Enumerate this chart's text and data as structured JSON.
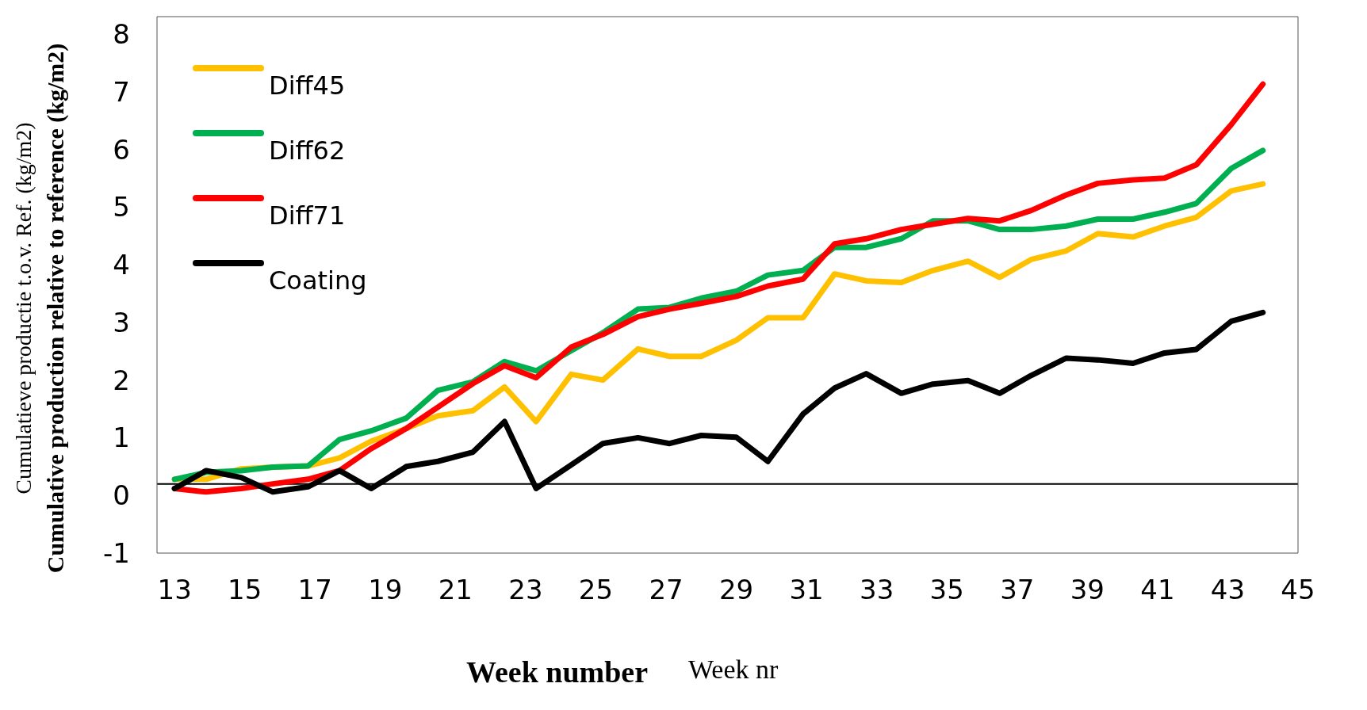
{
  "chart_data": {
    "type": "line",
    "ylabel": "Cumulative production relative to reference (kg/m2)",
    "xlabel": "Week number",
    "annotations": [
      "Cumulatieve productie t.o.v. Ref. (kg/m2)",
      "Week nr"
    ],
    "x": [
      13,
      13.9,
      14.9,
      15.8,
      16.8,
      17.7,
      18.6,
      19.6,
      20.5,
      21.5,
      22.4,
      23.3,
      24.3,
      25.2,
      26.2,
      27.1,
      28.0,
      29.0,
      29.9,
      30.9,
      31.8,
      32.7,
      33.7,
      34.6,
      35.6,
      36.5,
      37.4,
      38.4,
      39.3,
      40.3,
      41.2,
      42.1,
      43.1,
      44.0
    ],
    "series": [
      {
        "name": "Diff45",
        "color": "#ffc000",
        "values": [
          0.28,
          0.28,
          0.46,
          0.49,
          0.51,
          0.65,
          0.94,
          1.16,
          1.38,
          1.47,
          1.88,
          1.28,
          2.1,
          2.0,
          2.54,
          2.41,
          2.41,
          2.69,
          3.08,
          3.08,
          3.84,
          3.72,
          3.69,
          3.9,
          4.06,
          3.78,
          4.09,
          4.24,
          4.54,
          4.48,
          4.67,
          4.82,
          5.28,
          5.4
        ]
      },
      {
        "name": "Diff62",
        "color": "#00b050",
        "values": [
          0.28,
          0.4,
          0.43,
          0.49,
          0.51,
          0.97,
          1.12,
          1.34,
          1.82,
          1.97,
          2.32,
          2.16,
          2.51,
          2.82,
          3.23,
          3.26,
          3.42,
          3.54,
          3.82,
          3.9,
          4.3,
          4.3,
          4.45,
          4.76,
          4.76,
          4.61,
          4.61,
          4.67,
          4.79,
          4.79,
          4.91,
          5.06,
          5.67,
          5.98
        ]
      },
      {
        "name": "Diff71",
        "color": "#ff0000",
        "values": [
          0.12,
          0.06,
          0.12,
          0.2,
          0.28,
          0.43,
          0.81,
          1.16,
          1.53,
          1.94,
          2.25,
          2.04,
          2.57,
          2.79,
          3.1,
          3.23,
          3.33,
          3.45,
          3.63,
          3.75,
          4.36,
          4.45,
          4.61,
          4.7,
          4.8,
          4.76,
          4.94,
          5.21,
          5.41,
          5.47,
          5.5,
          5.73,
          6.43,
          7.13
        ]
      },
      {
        "name": "Coating",
        "color": "#000000",
        "values": [
          0.12,
          0.43,
          0.31,
          0.06,
          0.15,
          0.43,
          0.12,
          0.5,
          0.59,
          0.75,
          1.28,
          0.12,
          0.53,
          0.9,
          1.0,
          0.9,
          1.04,
          1.01,
          0.59,
          1.41,
          1.86,
          2.11,
          1.77,
          1.93,
          1.99,
          1.77,
          2.08,
          2.38,
          2.35,
          2.29,
          2.47,
          2.53,
          3.02,
          3.17
        ]
      }
    ],
    "xlim": [
      12.5,
      45
    ],
    "xticks": [
      13,
      15,
      17,
      19,
      21,
      23,
      25,
      27,
      29,
      31,
      33,
      35,
      37,
      39,
      41,
      43,
      45
    ],
    "ylim": [
      -1,
      8.3
    ],
    "yticks": [
      -1,
      0,
      1,
      2,
      3,
      4,
      5,
      6,
      7,
      8
    ],
    "ref_lines": [
      {
        "axis": "y",
        "value": 0.2,
        "color": "#000000"
      }
    ],
    "grid": false,
    "legend": "top left",
    "marker": "none",
    "line_style": "solid"
  }
}
